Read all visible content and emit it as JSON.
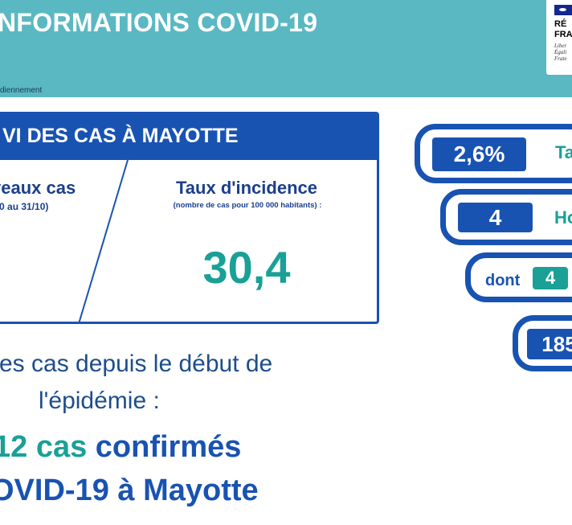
{
  "header": {
    "title": "NFORMATIONS COVID-19",
    "subtitle": "diennement",
    "logo": {
      "line1": "RÉ",
      "line2": "FRA",
      "motto1": "Liber",
      "motto2": "Égali",
      "motto3": "Frate"
    }
  },
  "panel": {
    "title": "VI DES CAS À MAYOTTE",
    "new_cases": {
      "title": "veaux cas",
      "period": "/10 au 31/10)"
    },
    "incidence": {
      "title": "Taux d'incidence",
      "note": "(nombre de cas pour 100 000 habitants) :",
      "value": "30,4"
    }
  },
  "totals": {
    "line1": "es cas depuis le début de",
    "line2": "l'épidémie :",
    "line3_num": "12 cas",
    "line3_rest": " confirmés",
    "line4": "OVID-19 à Mayotte"
  },
  "pills": [
    {
      "value": "2,6%",
      "label": "Ta"
    },
    {
      "value": "4",
      "label": "Ho"
    },
    {
      "prefix": "dont",
      "value": "4"
    },
    {
      "value": "185"
    }
  ],
  "colors": {
    "header": "#5ab8c2",
    "blue": "#1953b2",
    "teal": "#1aa097",
    "text": "#1d4d8c"
  }
}
